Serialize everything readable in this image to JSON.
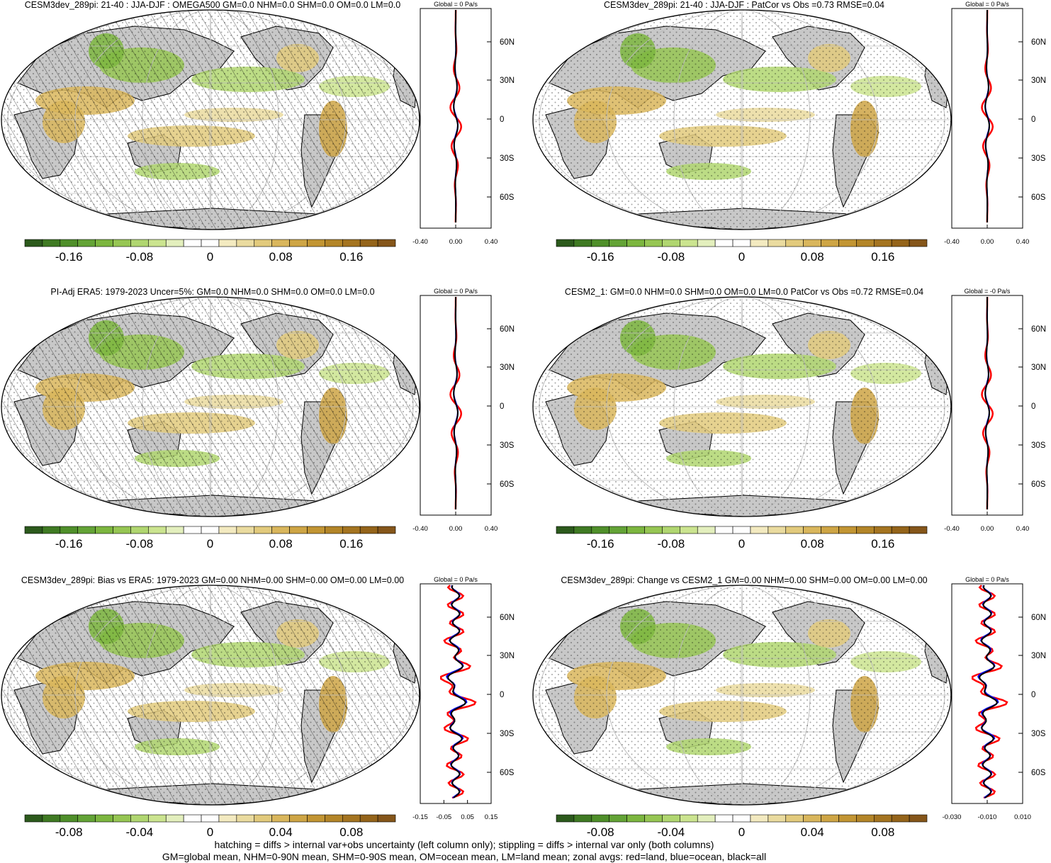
{
  "colors": {
    "land": "#c8c8c8",
    "ocean": "#ffffff",
    "coast": "#000000",
    "grid": "#bbbbbb",
    "zonal_land": "#ff0000",
    "zonal_ocean": "#0000ff",
    "zonal_all": "#000000",
    "scale": [
      "#2c5a1c",
      "#3f7a23",
      "#4f8f2a",
      "#63a336",
      "#7cb63f",
      "#96c653",
      "#b0d670",
      "#cbe48f",
      "#e3efbd",
      "#ffffff",
      "#ffffff",
      "#f3eac0",
      "#eadb9f",
      "#e2ca7c",
      "#d9b65c",
      "#ceA545",
      "#c29533",
      "#b38528",
      "#a47420",
      "#94641a",
      "#85561a"
    ]
  },
  "panels": [
    {
      "title": "CESM3dev_289pi: 21-40 : JJA-DJF : OMEGA500 GM=0.0 NHM=0.0 SHM=0.0 OM=0.0 LM=0.0",
      "zonal_header": "Global = 0 Pa/s",
      "lat_labels": [
        "60N",
        "30N",
        "0",
        "30S",
        "60S"
      ],
      "x_ticks": [
        "-0.40",
        "0.00",
        "0.40"
      ],
      "colorbar_labels": [
        "-0.16",
        "-0.08",
        "0",
        "0.08",
        "0.16"
      ],
      "hatched": true
    },
    {
      "title": "CESM3dev_289pi: 21-40 : JJA-DJF : PatCor vs Obs =0.73 RMSE=0.04",
      "zonal_header": "Global = 0 Pa/s",
      "lat_labels": [
        "60N",
        "30N",
        "0",
        "30S",
        "60S"
      ],
      "x_ticks": [
        "-0.40",
        "0.00",
        "0.40"
      ],
      "colorbar_labels": [
        "-0.16",
        "-0.08",
        "0",
        "0.08",
        "0.16"
      ],
      "hatched": false
    },
    {
      "title": "PI-Adj ERA5: 1979-2023 Uncer=5%: GM=0.0 NHM=0.0 SHM=0.0 OM=0.0 LM=0.0",
      "zonal_header": "Global = 0 Pa/s",
      "lat_labels": [
        "60N",
        "30N",
        "0",
        "30S",
        "60S"
      ],
      "x_ticks": [
        "-0.40",
        "0.00",
        "0.40"
      ],
      "colorbar_labels": [
        "-0.16",
        "-0.08",
        "0",
        "0.08",
        "0.16"
      ],
      "hatched": true
    },
    {
      "title": "CESM2_1: GM=0.0 NHM=0.0 SHM=0.0 OM=0.0 LM=0.0 PatCor vs Obs =0.72 RMSE=0.04",
      "zonal_header": "Global = -0 Pa/s",
      "lat_labels": [
        "60N",
        "30N",
        "0",
        "30S",
        "60S"
      ],
      "x_ticks": [
        "-0.40",
        "0.00",
        "0.40"
      ],
      "colorbar_labels": [
        "-0.16",
        "-0.08",
        "0",
        "0.08",
        "0.16"
      ],
      "hatched": false
    },
    {
      "title": "CESM3dev_289pi: Bias vs ERA5: 1979-2023 GM=0.00 NHM=0.00 SHM=0.00 OM=0.00 LM=0.00",
      "zonal_header": "Global = 0 Pa/s",
      "lat_labels": [
        "60N",
        "30N",
        "0",
        "30S",
        "60S"
      ],
      "x_ticks": [
        "-0.15",
        "-0.05",
        "0.05",
        "0.15"
      ],
      "colorbar_labels": [
        "-0.08",
        "-0.04",
        "0",
        "0.04",
        "0.08"
      ],
      "hatched": true
    },
    {
      "title": "CESM3dev_289pi: Change vs CESM2_1 GM=0.00 NHM=0.00 SHM=0.00 OM=0.00 LM=0.00",
      "zonal_header": "Global = 0 Pa/s",
      "lat_labels": [
        "60N",
        "30N",
        "0",
        "30S",
        "60S"
      ],
      "x_ticks": [
        "-0.030",
        "-0.010",
        "0.010"
      ],
      "colorbar_labels": [
        "-0.08",
        "-0.04",
        "0",
        "0.04",
        "0.08"
      ],
      "hatched": false
    }
  ],
  "footer": {
    "line1": "hatching = diffs > internal var+obs uncertainty (left column only); stippling = diffs > internal var only (both columns)",
    "line2": "GM=global mean, NHM=0-90N mean, SHM=0-90S mean, OM=ocean mean, LM=land mean; zonal avgs: red=land, blue=ocean, black=all"
  }
}
